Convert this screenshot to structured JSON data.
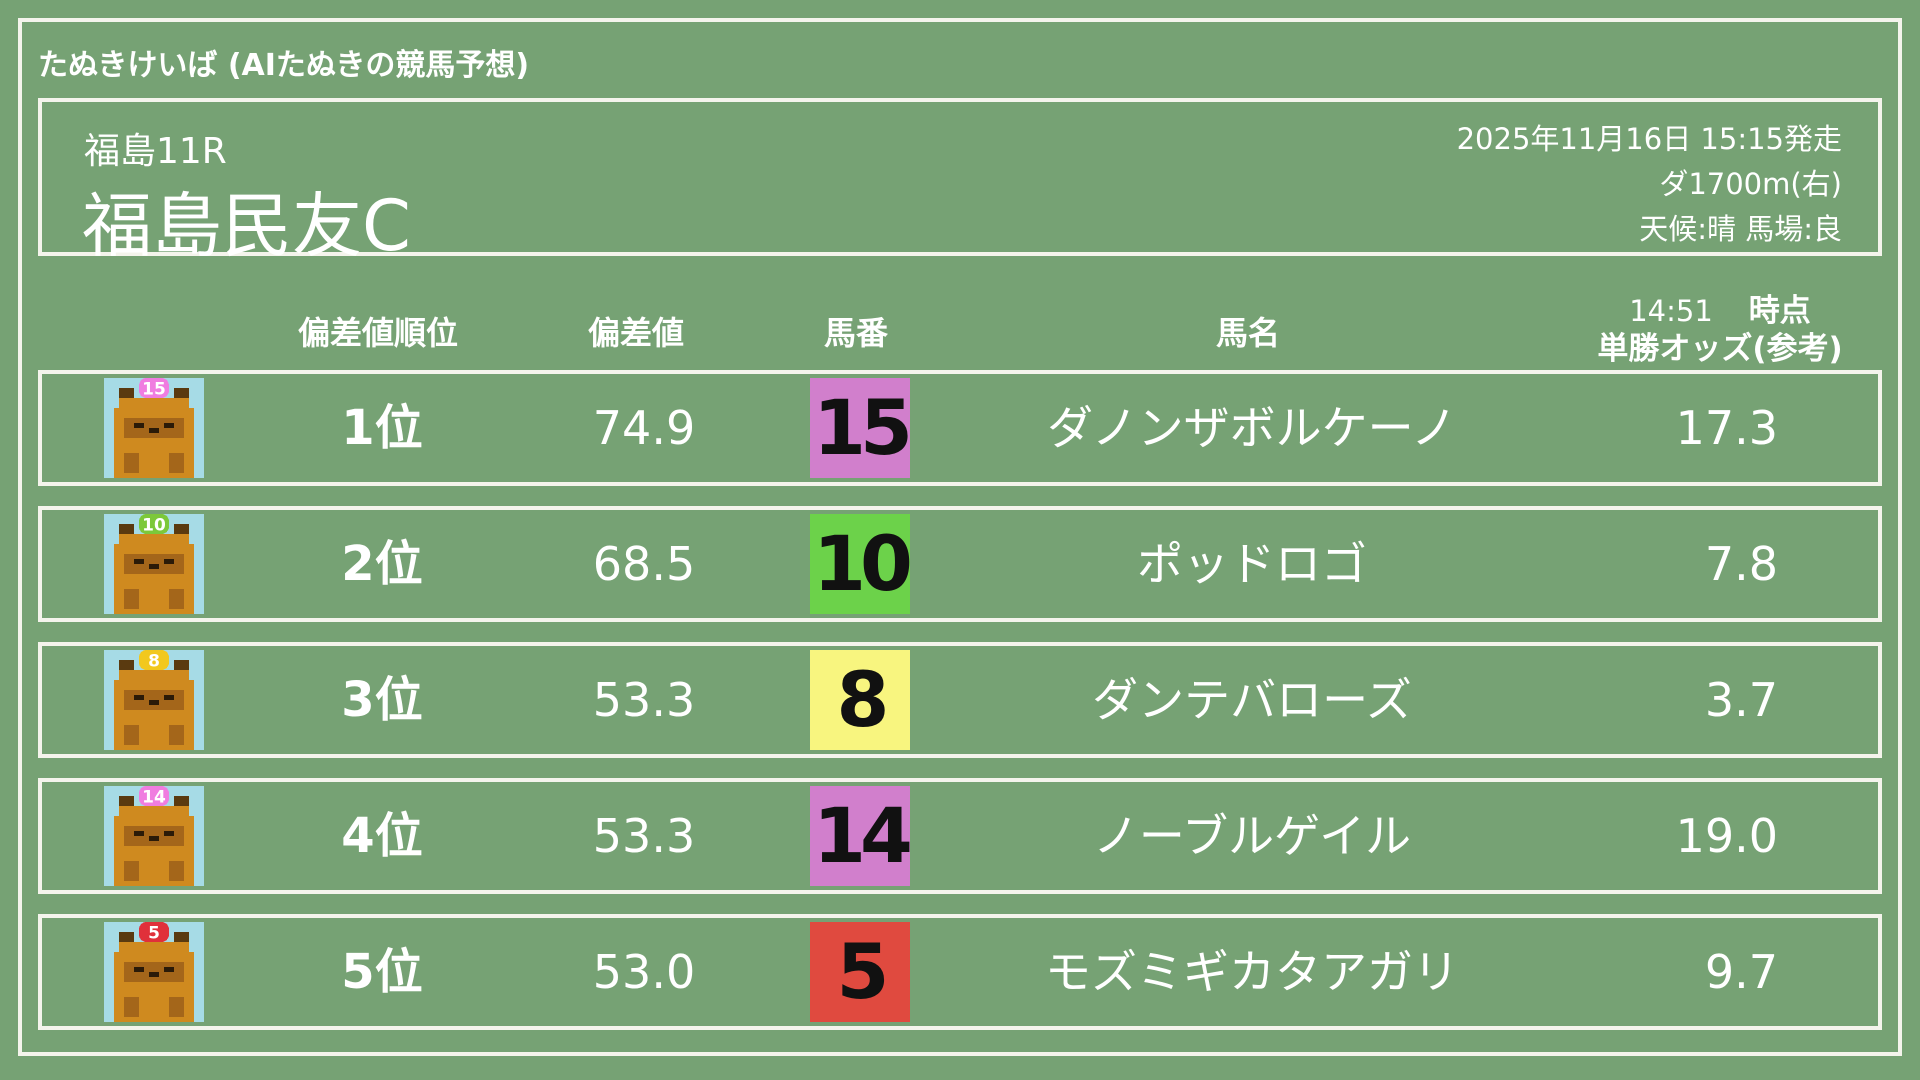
{
  "app_title": "たぬきけいば (AIたぬきの競馬予想)",
  "race": {
    "number": "福島11R",
    "name": "福島民友C",
    "datetime": "2025年11月16日 15:15発走",
    "course": "ダ1700m(右)",
    "conditions": "天候:晴 馬場:良"
  },
  "columns": {
    "rank": "偏差値順位",
    "score": "偏差値",
    "number": "馬番",
    "name": "馬名",
    "odds_time": "14:51",
    "odds_time_suffix": "時点",
    "odds": "単勝オッズ(参考)"
  },
  "colors": {
    "background": "#76a274",
    "chalk": "#f4f4ec"
  },
  "rows": [
    {
      "rank": "1位",
      "score": "74.9",
      "number": "15",
      "name": "ダノンザボルケーノ",
      "odds": "17.3",
      "color": "#d17fcc",
      "cap": "#f07de0"
    },
    {
      "rank": "2位",
      "score": "68.5",
      "number": "10",
      "name": "ポッドロゴ",
      "odds": "7.8",
      "color": "#6cd24a",
      "cap": "#7cc83a"
    },
    {
      "rank": "3位",
      "score": "53.3",
      "number": "8",
      "name": "ダンテバローズ",
      "odds": "3.7",
      "color": "#f8f57f",
      "cap": "#f2c81e"
    },
    {
      "rank": "4位",
      "score": "53.3",
      "number": "14",
      "name": "ノーブルゲイル",
      "odds": "19.0",
      "color": "#d17fcc",
      "cap": "#f07de0"
    },
    {
      "rank": "5位",
      "score": "53.0",
      "number": "5",
      "name": "モズミギカタアガリ",
      "odds": "9.7",
      "color": "#e04a3f",
      "cap": "#e0303a"
    }
  ]
}
